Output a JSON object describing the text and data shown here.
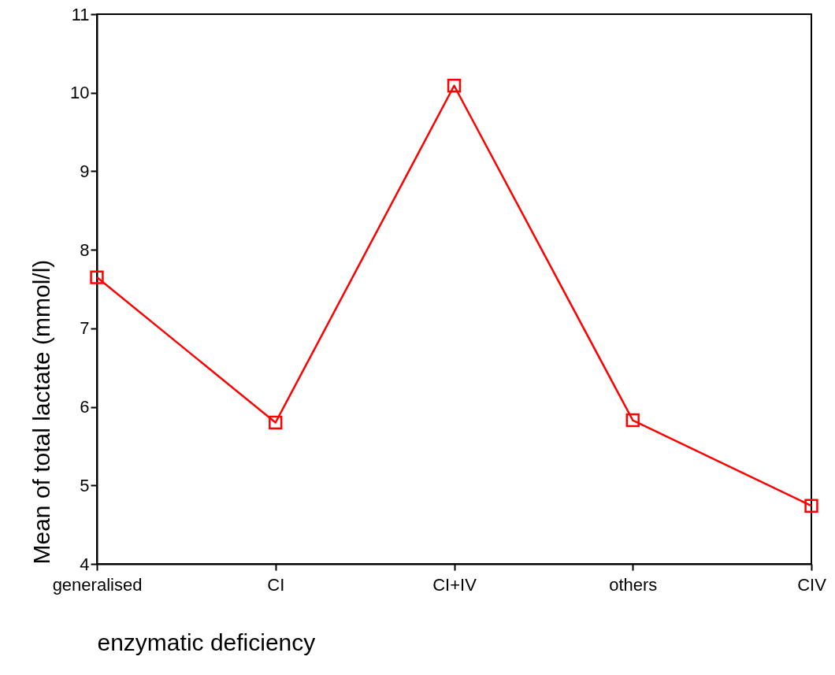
{
  "chart_data": {
    "type": "line",
    "xlabel": "enzymatic deficiency",
    "ylabel": "Mean of total lactate (mmol/l)",
    "categories": [
      "generalised",
      "CI",
      "CI+IV",
      "others",
      "CIV"
    ],
    "series": [
      {
        "color": "#ff0000",
        "values": [
          7.65,
          5.8,
          10.09,
          5.83,
          4.74
        ]
      }
    ],
    "ylim": [
      4,
      11
    ],
    "yticks": [
      4,
      5,
      6,
      7,
      8,
      9,
      10,
      11
    ],
    "marker": "square",
    "line_style": "solid",
    "grid": false
  }
}
